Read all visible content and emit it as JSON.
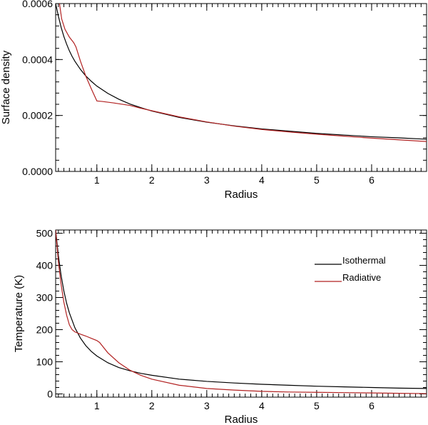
{
  "chart_data": [
    {
      "type": "line",
      "title": "",
      "xlabel": "Radius",
      "ylabel": "Surface density",
      "xlim": [
        0.25,
        7.0
      ],
      "ylim": [
        0.0,
        0.0006
      ],
      "x_ticks": [
        1,
        2,
        3,
        4,
        5,
        6
      ],
      "x_tick_labels": [
        "1",
        "2",
        "3",
        "4",
        "5",
        "6"
      ],
      "y_ticks": [
        0.0,
        0.0002,
        0.0004,
        0.0006
      ],
      "y_tick_labels": [
        "0.0000",
        "0.0002",
        "0.0004",
        "0.0006"
      ],
      "grid": false,
      "series": [
        {
          "name": "Isothermal",
          "color": "#000000",
          "x": [
            0.25,
            0.3,
            0.35,
            0.4,
            0.45,
            0.5,
            0.55,
            0.6,
            0.7,
            0.8,
            0.9,
            1.0,
            1.2,
            1.4,
            1.6,
            1.8,
            2.0,
            2.5,
            3.0,
            3.5,
            4.0,
            4.5,
            5.0,
            5.5,
            6.0,
            6.5,
            7.0
          ],
          "y": [
            0.0006,
            0.000555,
            0.000515,
            0.000482,
            0.000455,
            0.000431,
            0.000411,
            0.000394,
            0.000365,
            0.000341,
            0.000322,
            0.000305,
            0.000279,
            0.000258,
            0.000241,
            0.000228,
            0.000216,
            0.000193,
            0.000176,
            0.000163,
            0.000152,
            0.000144,
            0.000136,
            0.00013,
            0.000124,
            0.00012,
            0.000115
          ]
        },
        {
          "name": "Radiative",
          "color": "#b22222",
          "x": [
            0.32,
            0.36,
            0.42,
            0.5,
            0.58,
            0.62,
            0.7,
            0.8,
            0.9,
            1.0,
            1.1,
            1.3,
            1.6,
            1.8,
            2.0,
            2.5,
            3.0,
            3.5,
            4.0,
            4.5,
            5.0,
            5.5,
            6.0,
            6.5,
            7.0
          ],
          "y": [
            0.0006,
            0.000545,
            0.000508,
            0.00048,
            0.00046,
            0.000445,
            0.000395,
            0.00034,
            0.000295,
            0.000252,
            0.00025,
            0.000245,
            0.000236,
            0.000226,
            0.000217,
            0.000195,
            0.000177,
            0.000162,
            0.00015,
            0.000141,
            0.000133,
            0.000126,
            0.000119,
            0.000113,
            0.000107
          ]
        }
      ]
    },
    {
      "type": "line",
      "title": "",
      "xlabel": "Radius",
      "ylabel": "Temperature (K)",
      "xlim": [
        0.25,
        7.0
      ],
      "ylim": [
        -10,
        510
      ],
      "x_ticks": [
        1,
        2,
        3,
        4,
        5,
        6
      ],
      "x_tick_labels": [
        "1",
        "2",
        "3",
        "4",
        "5",
        "6"
      ],
      "y_ticks": [
        0,
        100,
        200,
        300,
        400,
        500
      ],
      "y_tick_labels": [
        "0",
        "100",
        "200",
        "300",
        "400",
        "500"
      ],
      "grid": false,
      "legend_position": "top-right",
      "series": [
        {
          "name": "Isothermal",
          "color": "#000000",
          "x": [
            0.25,
            0.3,
            0.35,
            0.4,
            0.45,
            0.5,
            0.6,
            0.7,
            0.8,
            0.9,
            1.0,
            1.2,
            1.4,
            1.6,
            1.8,
            2.0,
            2.5,
            3.0,
            3.5,
            4.0,
            4.5,
            5.0,
            5.5,
            6.0,
            6.5,
            7.0
          ],
          "y": [
            510,
            430,
            368,
            320,
            282,
            252,
            206,
            174,
            150,
            132,
            118,
            97,
            82,
            72,
            64,
            58,
            46,
            39,
            34,
            30,
            27,
            24,
            22,
            20,
            18,
            17
          ]
        },
        {
          "name": "Radiative",
          "color": "#b22222",
          "x": [
            0.25,
            0.3,
            0.35,
            0.4,
            0.45,
            0.5,
            0.55,
            0.6,
            0.7,
            0.8,
            0.9,
            1.0,
            1.05,
            1.2,
            1.4,
            1.6,
            1.8,
            2.0,
            2.5,
            3.0,
            3.5,
            4.0,
            4.5,
            5.0,
            5.5,
            6.0,
            6.5,
            7.0
          ],
          "y": [
            510,
            410,
            340,
            285,
            245,
            215,
            200,
            193,
            186,
            180,
            173,
            166,
            160,
            128,
            97,
            74,
            58,
            46,
            27,
            17,
            12,
            8,
            6,
            5,
            4,
            3,
            2,
            1
          ]
        }
      ]
    }
  ]
}
